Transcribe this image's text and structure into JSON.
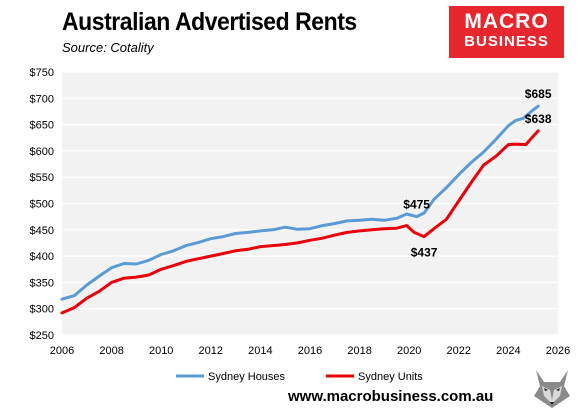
{
  "header": {
    "title": "Australian Advertised Rents",
    "subtitle": "Source: Cotality"
  },
  "logo": {
    "line1": "MACRO",
    "line2": "BUSINESS",
    "color": "#e8262d"
  },
  "footer": {
    "url": "www.macrobusiness.com.au",
    "mascot_icon": "fox-icon"
  },
  "chart_data": {
    "type": "line",
    "title": "Australian Advertised Rents",
    "xlabel": "",
    "ylabel": "",
    "xlim": [
      2006,
      2026
    ],
    "ylim": [
      250,
      750
    ],
    "x_ticks": [
      2006,
      2008,
      2010,
      2012,
      2014,
      2016,
      2018,
      2020,
      2022,
      2024,
      2026
    ],
    "y_ticks": [
      250,
      300,
      350,
      400,
      450,
      500,
      550,
      600,
      650,
      700,
      750
    ],
    "y_tick_labels": [
      "$250",
      "$300",
      "$350",
      "$400",
      "$450",
      "$500",
      "$550",
      "$600",
      "$650",
      "$700",
      "$750"
    ],
    "grid": "horizontal",
    "legend_position": "bottom",
    "series": [
      {
        "name": "Sydney Houses",
        "color": "#5b9bd5",
        "x": [
          2006,
          2006.5,
          2007,
          2007.5,
          2008,
          2008.5,
          2009,
          2009.5,
          2010,
          2010.5,
          2011,
          2011.5,
          2012,
          2012.5,
          2013,
          2013.5,
          2014,
          2014.5,
          2015,
          2015.5,
          2016,
          2016.5,
          2017,
          2017.5,
          2018,
          2018.5,
          2019,
          2019.5,
          2019.9,
          2020.3,
          2020.6,
          2021,
          2021.5,
          2022,
          2022.5,
          2023,
          2023.5,
          2024,
          2024.3,
          2024.6,
          2025,
          2025.2
        ],
        "y": [
          318,
          325,
          345,
          362,
          378,
          386,
          385,
          392,
          403,
          410,
          420,
          426,
          433,
          437,
          443,
          445,
          448,
          450,
          455,
          451,
          452,
          458,
          462,
          467,
          468,
          470,
          468,
          472,
          480,
          475,
          482,
          508,
          530,
          555,
          578,
          598,
          622,
          648,
          658,
          662,
          678,
          685
        ]
      },
      {
        "name": "Sydney Units",
        "color": "#e8000b",
        "x": [
          2006,
          2006.5,
          2007,
          2007.5,
          2008,
          2008.5,
          2009,
          2009.5,
          2010,
          2010.5,
          2011,
          2011.5,
          2012,
          2012.5,
          2013,
          2013.5,
          2014,
          2014.5,
          2015,
          2015.5,
          2016,
          2016.5,
          2017,
          2017.5,
          2018,
          2018.5,
          2019,
          2019.5,
          2019.9,
          2020.2,
          2020.6,
          2021,
          2021.5,
          2022,
          2022.5,
          2023,
          2023.5,
          2024,
          2024.3,
          2024.7,
          2025,
          2025.2
        ],
        "y": [
          292,
          302,
          320,
          333,
          350,
          358,
          360,
          364,
          375,
          382,
          390,
          395,
          400,
          405,
          410,
          413,
          418,
          420,
          422,
          425,
          430,
          434,
          440,
          445,
          448,
          450,
          452,
          453,
          458,
          445,
          437,
          452,
          470,
          505,
          540,
          573,
          590,
          612,
          613,
          612,
          628,
          638
        ]
      }
    ],
    "annotations": [
      {
        "text": "$685",
        "series": "Sydney Houses",
        "x": 2025.2,
        "y": 685,
        "pos": "above"
      },
      {
        "text": "$638",
        "series": "Sydney Units",
        "x": 2025.2,
        "y": 638,
        "pos": "above"
      },
      {
        "text": "$475",
        "series": "Sydney Houses",
        "x": 2020.3,
        "y": 475,
        "pos": "above"
      },
      {
        "text": "$437",
        "series": "Sydney Units",
        "x": 2020.6,
        "y": 437,
        "pos": "below"
      }
    ]
  }
}
